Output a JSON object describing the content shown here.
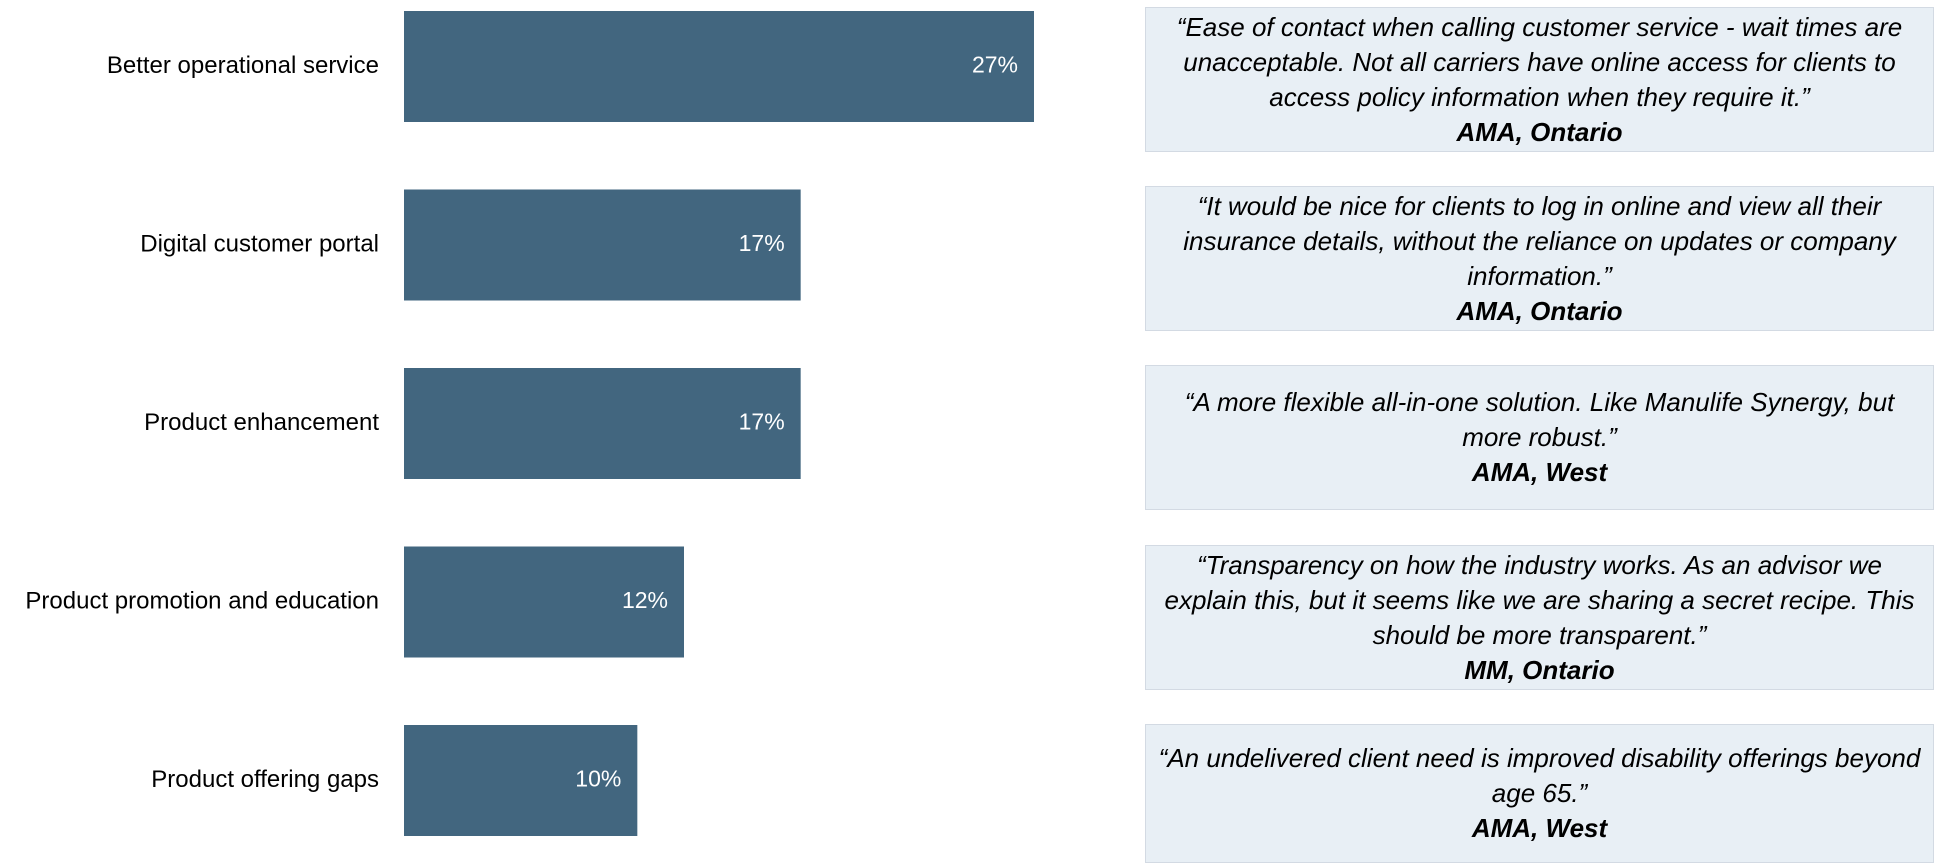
{
  "chart_data": {
    "type": "bar",
    "orientation": "horizontal",
    "categories": [
      "Better operational service",
      "Digital customer portal",
      "Product enhancement",
      "Product promotion and education",
      "Product offering gaps"
    ],
    "values": [
      27,
      17,
      17,
      12,
      10
    ],
    "data_labels": [
      "27%",
      "17%",
      "17%",
      "12%",
      "10%"
    ],
    "xlim": [
      0,
      27
    ],
    "grid": false,
    "legend": "none",
    "bar_color": "#42667f",
    "label_color": "#ffffff"
  },
  "quotes": [
    {
      "text": "“Ease of contact when calling customer service - wait times are unacceptable. Not all carriers have online access for clients to access policy information when they require it.”",
      "source": "AMA, Ontario"
    },
    {
      "text": "“It would be nice for clients to log in online and view all their insurance details, without the reliance on updates or company information.”",
      "source": "AMA, Ontario"
    },
    {
      "text": "“A more flexible all-in-one solution. Like Manulife Synergy, but more robust.”",
      "source": "AMA, West"
    },
    {
      "text": "“Transparency on how the industry works. As an advisor we explain this, but it seems like we are sharing a secret recipe. This should be more transparent.”",
      "source": "MM, Ontario"
    },
    {
      "text": "“An undelivered client need is improved disability offerings beyond age 65.”",
      "source": "AMA, West"
    }
  ],
  "colors": {
    "quote_box_bg": "#e8eff5"
  }
}
